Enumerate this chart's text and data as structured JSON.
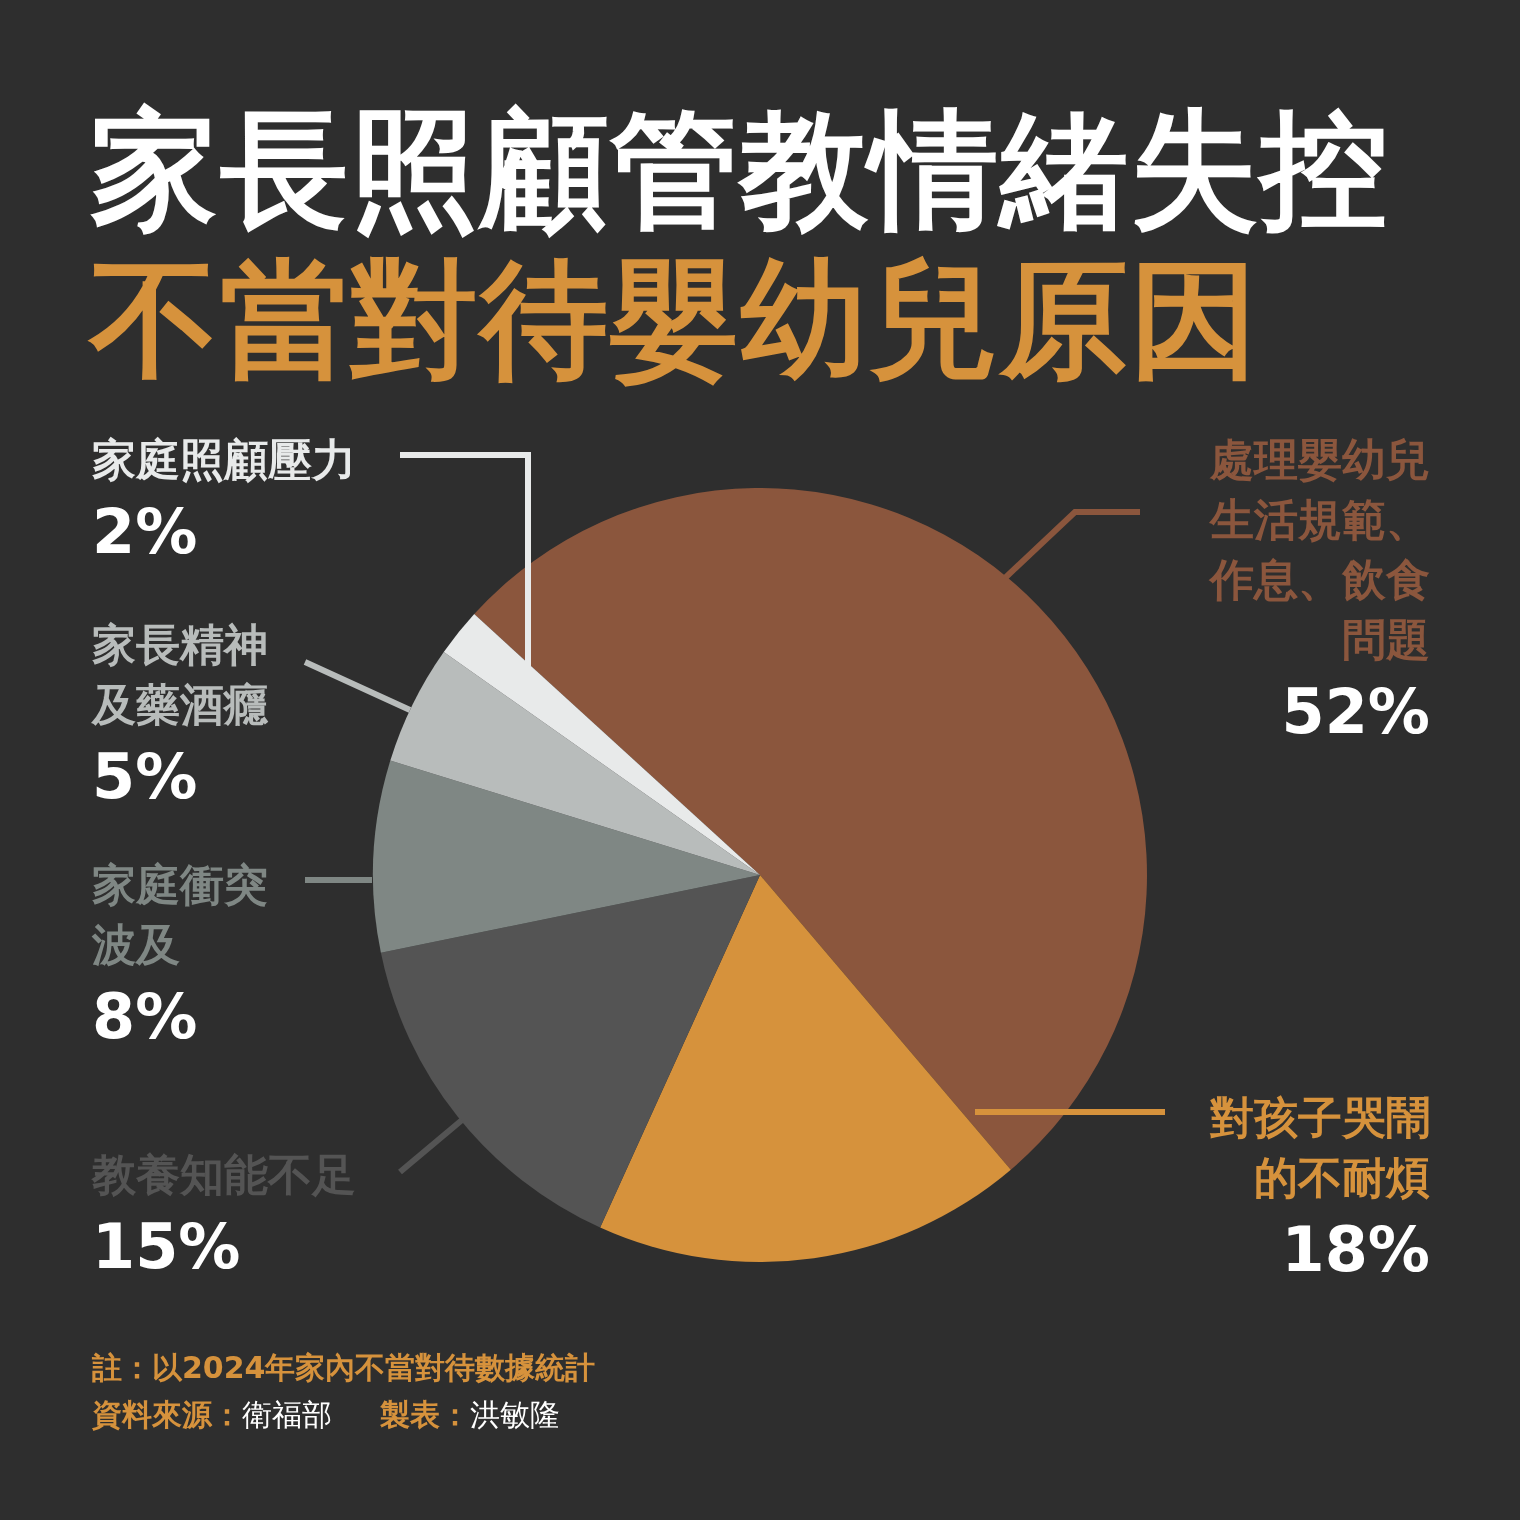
{
  "chart_data": {
    "type": "pie",
    "title": "家長照顧管教情緒失控",
    "subtitle": "不當對待嬰幼兒原因",
    "categories": [
      "處理嬰幼兒生活規範、作息、飲食問題",
      "對孩子哭鬧的不耐煩",
      "教養知能不足",
      "家庭衝突波及",
      "家長精神及藥酒癮",
      "家庭照顧壓力"
    ],
    "values": [
      52,
      18,
      15,
      8,
      5,
      2
    ],
    "colors": [
      "#8b563d",
      "#d6923c",
      "#545454",
      "#7f8784",
      "#b8bcbb",
      "#e8eaea"
    ],
    "value_labels": [
      "52%",
      "18%",
      "15%",
      "8%",
      "5%",
      "2%"
    ],
    "annotations": [
      "註：以2024年家內不當對待數據統計",
      "資料來源：衛福部",
      "製表：洪敏隆"
    ]
  }
}
